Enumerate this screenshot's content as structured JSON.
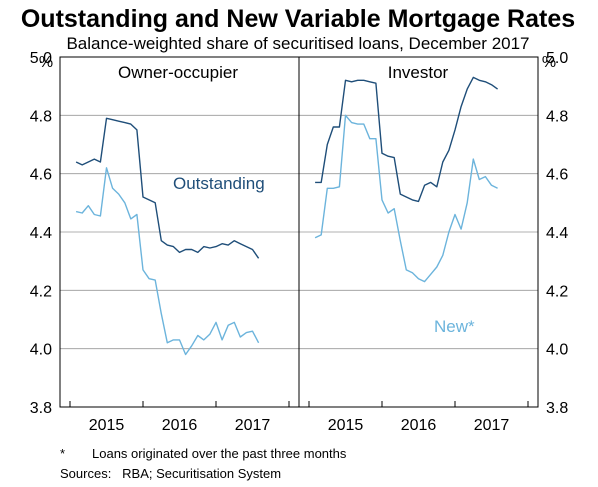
{
  "title": "Outstanding and New Variable Mortgage Rates",
  "subtitle": "Balance-weighted share of securitised loans, December 2017",
  "unit_left": "%",
  "unit_right": "%",
  "footnote_marker": "*",
  "footnote_text": "Loans originated over the past three months",
  "sources": "Sources:   RBA; Securitisation System",
  "colors": {
    "outstanding": "#1f4e79",
    "new": "#6cb4dc",
    "grid": "#999999",
    "axis": "#000000"
  },
  "chart_data": {
    "type": "line",
    "ylim": [
      3.8,
      5.0
    ],
    "yticks": [
      "3.8",
      "4.0",
      "4.2",
      "4.4",
      "4.6",
      "4.8",
      "5.0"
    ],
    "xticks": [
      "2015",
      "2016",
      "2017"
    ],
    "grid": true,
    "panels": [
      {
        "label": "Owner-occupier",
        "x_start": "2015-01",
        "series": [
          {
            "key": "outstanding",
            "name": "Outstanding",
            "values": [
              4.64,
              4.63,
              4.64,
              4.65,
              4.64,
              4.79,
              4.785,
              4.78,
              4.775,
              4.77,
              4.75,
              4.52,
              4.51,
              4.5,
              4.37,
              4.355,
              4.35,
              4.33,
              4.34,
              4.34,
              4.33,
              4.35,
              4.345,
              4.35,
              4.36,
              4.355,
              4.37,
              4.36,
              4.35,
              4.34,
              4.31
            ]
          },
          {
            "key": "new",
            "name": "New*",
            "values": [
              4.47,
              4.465,
              4.49,
              4.46,
              4.455,
              4.62,
              4.55,
              4.53,
              4.5,
              4.445,
              4.46,
              4.27,
              4.24,
              4.235,
              4.12,
              4.02,
              4.03,
              4.03,
              3.98,
              4.01,
              4.045,
              4.03,
              4.05,
              4.09,
              4.03,
              4.08,
              4.09,
              4.04,
              4.055,
              4.06,
              4.02
            ]
          }
        ]
      },
      {
        "label": "Investor",
        "x_start": "2015-01",
        "series": [
          {
            "key": "outstanding",
            "name": "Outstanding",
            "values": [
              4.57,
              4.57,
              4.7,
              4.76,
              4.76,
              4.92,
              4.915,
              4.92,
              4.92,
              4.915,
              4.91,
              4.67,
              4.66,
              4.655,
              4.53,
              4.52,
              4.51,
              4.505,
              4.56,
              4.57,
              4.555,
              4.64,
              4.68,
              4.75,
              4.83,
              4.89,
              4.93,
              4.92,
              4.915,
              4.905,
              4.89
            ]
          },
          {
            "key": "new",
            "name": "New*",
            "values": [
              4.38,
              4.39,
              4.55,
              4.55,
              4.555,
              4.8,
              4.775,
              4.77,
              4.77,
              4.72,
              4.72,
              4.51,
              4.465,
              4.48,
              4.37,
              4.27,
              4.26,
              4.24,
              4.23,
              4.255,
              4.28,
              4.32,
              4.4,
              4.46,
              4.41,
              4.5,
              4.65,
              4.58,
              4.59,
              4.56,
              4.55
            ]
          }
        ]
      }
    ]
  }
}
